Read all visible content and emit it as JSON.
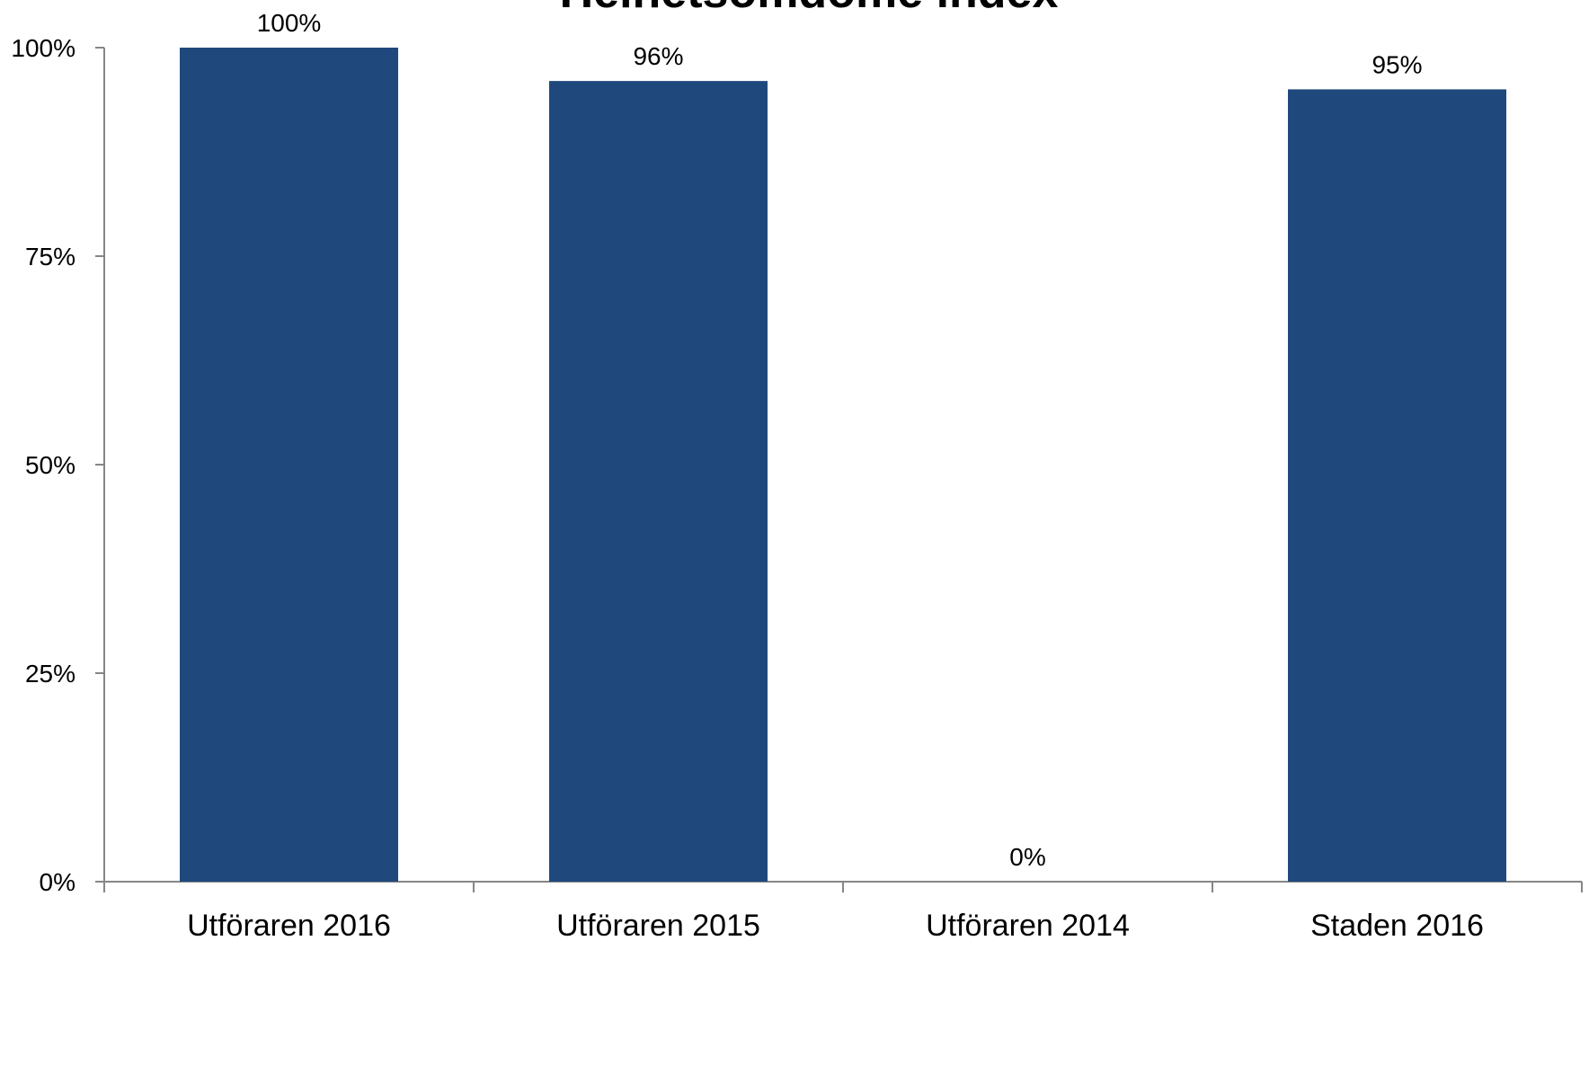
{
  "chart_data": {
    "type": "bar",
    "title": "Helhetsomdöme index",
    "categories": [
      "Utföraren 2016",
      "Utföraren 2015",
      "Utföraren 2014",
      "Staden 2016"
    ],
    "values": [
      100,
      96,
      0,
      95
    ],
    "data_labels": [
      "100%",
      "96%",
      "0%",
      "95%"
    ],
    "y_ticks": [
      0,
      25,
      50,
      75,
      100
    ],
    "y_tick_labels": [
      "0%",
      "25%",
      "50%",
      "75%",
      "100%"
    ],
    "ylim": [
      0,
      100
    ],
    "xlabel": "",
    "ylabel": "",
    "grid": false,
    "legend": "none",
    "bar_color": "#1F497D",
    "axis_color": "#868686"
  }
}
